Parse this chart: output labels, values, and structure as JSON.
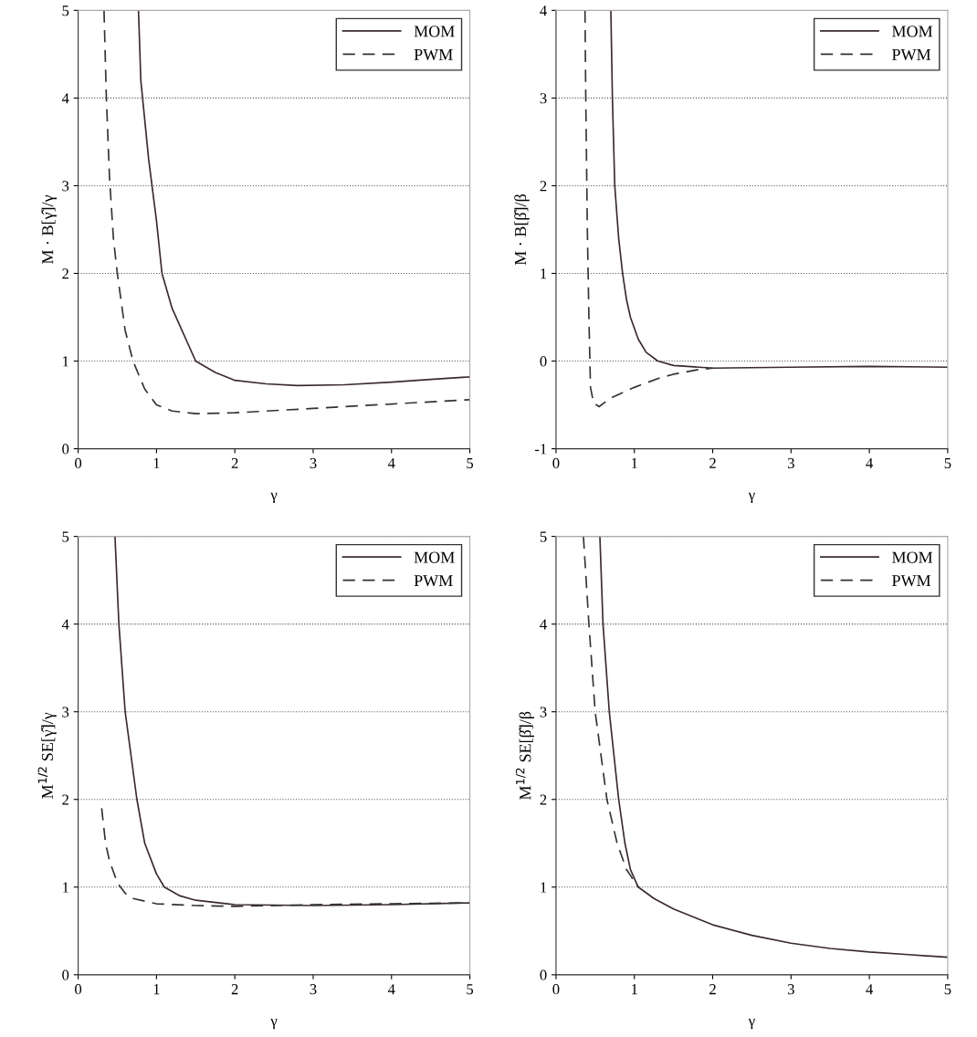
{
  "chart_data": [
    {
      "type": "line",
      "xlabel": "γ",
      "ylabel": "M · B[γ̂]/γ",
      "xlim": [
        0,
        5
      ],
      "ylim": [
        0,
        5
      ],
      "xticks": [
        0,
        1,
        2,
        3,
        4,
        5
      ],
      "yticks": [
        0,
        1,
        2,
        3,
        4,
        5
      ],
      "grid": "y",
      "legend": "top right",
      "series": [
        {
          "name": "MOM",
          "color": "#3a2a33",
          "line_style": "solid",
          "x": [
            0.77,
            0.8,
            0.9,
            1.0,
            1.07,
            1.2,
            1.5,
            1.75,
            2.0,
            2.4,
            2.8,
            3.4,
            4.0,
            4.5,
            5.0
          ],
          "values": [
            5,
            4.2,
            3.3,
            2.6,
            2.0,
            1.6,
            1.0,
            0.87,
            0.78,
            0.74,
            0.72,
            0.73,
            0.76,
            0.79,
            0.82
          ]
        },
        {
          "name": "PWM",
          "color": "#333333",
          "line_style": "dashed",
          "x": [
            0.33,
            0.36,
            0.4,
            0.45,
            0.5,
            0.6,
            0.7,
            0.85,
            1.0,
            1.2,
            1.5,
            2.0,
            3.0,
            4.0,
            5.0
          ],
          "values": [
            5,
            4.0,
            3.1,
            2.4,
            2.0,
            1.35,
            1.0,
            0.68,
            0.5,
            0.43,
            0.4,
            0.41,
            0.46,
            0.51,
            0.56
          ]
        }
      ]
    },
    {
      "type": "line",
      "xlabel": "γ",
      "ylabel": "M · B[β̂]/β",
      "xlim": [
        0,
        5
      ],
      "ylim": [
        -1,
        4
      ],
      "xticks": [
        0,
        1,
        2,
        3,
        4,
        5
      ],
      "yticks": [
        -1,
        0,
        1,
        2,
        3,
        4
      ],
      "grid": "y",
      "legend": "top right",
      "series": [
        {
          "name": "MOM",
          "color": "#3a2a33",
          "line_style": "solid",
          "x": [
            0.7,
            0.72,
            0.75,
            0.8,
            0.85,
            0.9,
            0.95,
            1.05,
            1.15,
            1.3,
            1.5,
            2.0,
            3.0,
            4.0,
            5.0
          ],
          "values": [
            4,
            3.0,
            2.0,
            1.4,
            1.0,
            0.7,
            0.5,
            0.25,
            0.1,
            0.0,
            -0.05,
            -0.08,
            -0.07,
            -0.06,
            -0.07
          ]
        },
        {
          "name": "PWM",
          "color": "#333333",
          "line_style": "dashed",
          "x": [
            0.37,
            0.38,
            0.4,
            0.42,
            0.44,
            0.48,
            0.55,
            0.7,
            1.0,
            1.3,
            1.5,
            1.8,
            2.0
          ],
          "values": [
            4,
            3.0,
            1.5,
            0.5,
            -0.3,
            -0.48,
            -0.52,
            -0.42,
            -0.3,
            -0.2,
            -0.15,
            -0.1,
            -0.08
          ]
        }
      ]
    },
    {
      "type": "line",
      "xlabel": "γ",
      "ylabel": "M$^{1/2}$ SE[γ̂]/γ",
      "xlim": [
        0,
        5
      ],
      "ylim": [
        0,
        5
      ],
      "xticks": [
        0,
        1,
        2,
        3,
        4,
        5
      ],
      "yticks": [
        0,
        1,
        2,
        3,
        4,
        5
      ],
      "grid": "y",
      "legend": "top right",
      "series": [
        {
          "name": "MOM",
          "color": "#3a2a33",
          "line_style": "solid",
          "x": [
            0.47,
            0.52,
            0.6,
            0.75,
            0.85,
            1.0,
            1.1,
            1.3,
            1.5,
            2.0,
            3.0,
            4.0,
            5.0
          ],
          "values": [
            5,
            4.0,
            3.0,
            2.0,
            1.5,
            1.15,
            1.0,
            0.9,
            0.85,
            0.8,
            0.79,
            0.8,
            0.82
          ]
        },
        {
          "name": "PWM",
          "color": "#333333",
          "line_style": "dashed",
          "x": [
            0.3,
            0.35,
            0.4,
            0.5,
            0.6,
            0.7,
            1.0,
            1.5,
            2.0,
            3.0,
            4.0,
            5.0
          ],
          "values": [
            1.9,
            1.5,
            1.3,
            1.05,
            0.93,
            0.87,
            0.81,
            0.79,
            0.78,
            0.8,
            0.81,
            0.82
          ]
        }
      ]
    },
    {
      "type": "line",
      "xlabel": "γ",
      "ylabel": "M$^{1/2}$ SE[β̂]/β",
      "xlim": [
        0,
        5
      ],
      "ylim": [
        0,
        5
      ],
      "xticks": [
        0,
        1,
        2,
        3,
        4,
        5
      ],
      "yticks": [
        0,
        1,
        2,
        3,
        4,
        5
      ],
      "grid": "y",
      "legend": "top right",
      "series": [
        {
          "name": "MOM",
          "color": "#3a2a33",
          "line_style": "solid",
          "x": [
            0.56,
            0.6,
            0.68,
            0.8,
            0.88,
            0.95,
            1.05,
            1.25,
            1.5,
            2.0,
            2.5,
            3.0,
            3.5,
            4.0,
            4.5,
            5.0
          ],
          "values": [
            5,
            4.0,
            3.0,
            2.0,
            1.5,
            1.2,
            1.0,
            0.87,
            0.75,
            0.57,
            0.45,
            0.36,
            0.3,
            0.26,
            0.23,
            0.2
          ]
        },
        {
          "name": "PWM",
          "color": "#333333",
          "line_style": "dashed",
          "x": [
            0.35,
            0.42,
            0.5,
            0.65,
            0.78,
            0.9,
            1.05
          ],
          "values": [
            5,
            4.0,
            3.0,
            2.0,
            1.5,
            1.2,
            1.0
          ]
        }
      ]
    }
  ]
}
